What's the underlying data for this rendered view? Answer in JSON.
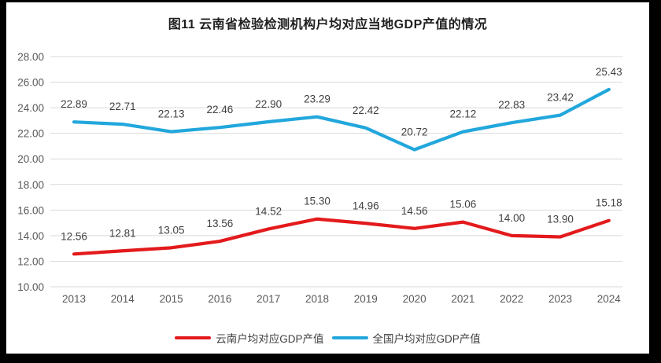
{
  "colors": {
    "gridline": "#d9d9d9",
    "axis_label": "#595959",
    "data_label": "#3f3f3f",
    "title": "#1f1f1f",
    "yunnan_red": "#e31a1c",
    "national_blue": "#22a7dc",
    "frame_border": "#000000",
    "background": "#ffffff"
  },
  "chart_data": {
    "type": "line",
    "title": "图11 云南省检验检测机构户均对应当地GDP产值的情况",
    "categories": [
      "2013",
      "2014",
      "2015",
      "2016",
      "2017",
      "2018",
      "2019",
      "2020",
      "2021",
      "2022",
      "2023",
      "2024"
    ],
    "series": [
      {
        "name": "云南户均对应GDP产值",
        "color": "#e31a1c",
        "values": [
          12.56,
          12.81,
          13.05,
          13.56,
          14.52,
          15.3,
          14.96,
          14.56,
          15.06,
          14.0,
          13.9,
          15.18
        ]
      },
      {
        "name": "全国户均对应GDP产值",
        "color": "#22a7dc",
        "values": [
          22.89,
          22.71,
          22.13,
          22.46,
          22.9,
          23.29,
          22.42,
          20.72,
          22.12,
          22.83,
          23.42,
          25.43
        ]
      }
    ],
    "ylim": [
      10,
      28
    ],
    "ytick_step": 2,
    "ytick_format": "0.00",
    "data_labels": true,
    "grid": true,
    "legend_position": "bottom",
    "xlabel": "",
    "ylabel": ""
  }
}
